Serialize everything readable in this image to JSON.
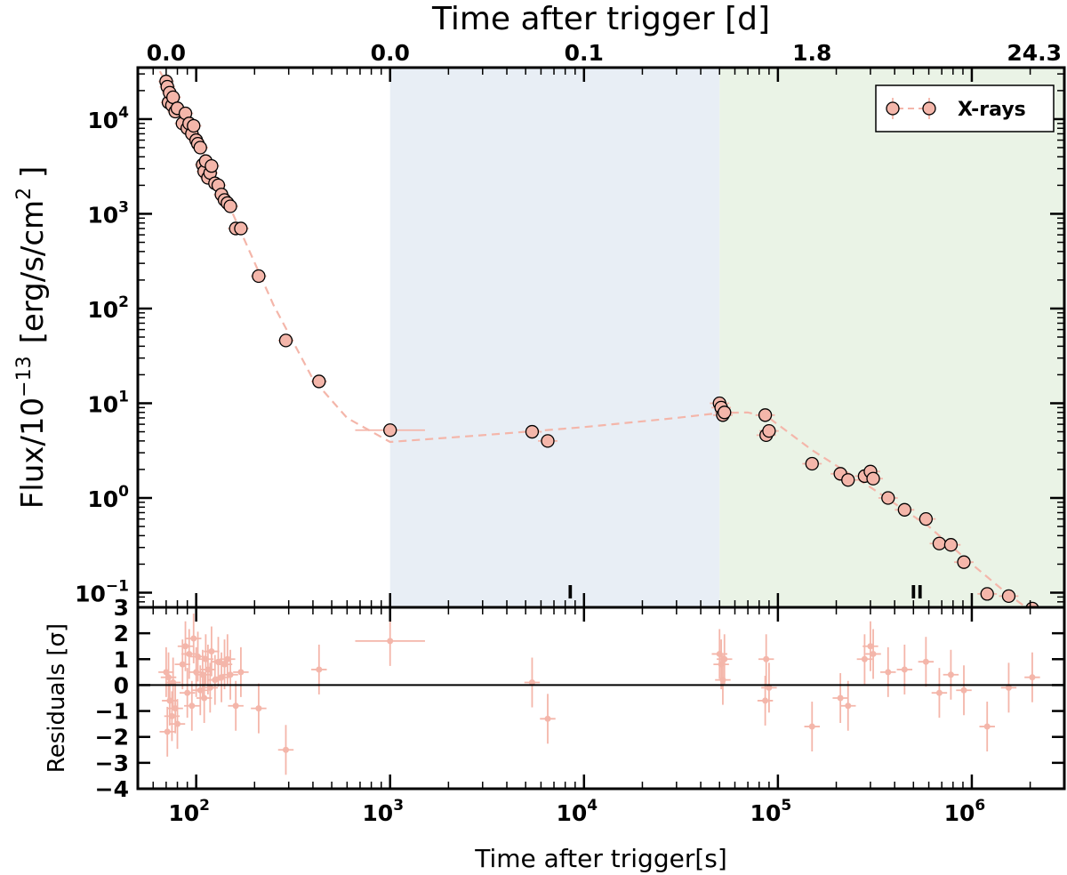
{
  "chart_data": [
    {
      "type": "scatter",
      "panel": "main",
      "top_title": "Time after trigger [d]",
      "top_ticks": [
        "0.0",
        "0.0",
        "0.1",
        "1.8",
        "24.3"
      ],
      "top_tick_positions_s": [
        70,
        1000,
        10000,
        150000,
        2100000
      ],
      "xscale": "log",
      "xlim": [
        50,
        3000000
      ],
      "ylabel": "Flux/10⁻¹³ [erg/s/cm²]",
      "ylabel_parts": {
        "text": "Flux/10",
        "exp": "−13",
        "unit_pre": "[erg/s/cm",
        "unit_exp": "2",
        "unit_post": " ]"
      },
      "yscale": "log",
      "ylim": [
        0.07,
        35000
      ],
      "yticks": [
        0.1,
        1,
        10,
        100,
        1000,
        10000
      ],
      "yticks_base": "10",
      "yticks_exp": [
        "−1",
        "0",
        "1",
        "2",
        "3",
        "4"
      ],
      "shaded_regions": [
        {
          "from": 1000,
          "to": 50000,
          "color": "#e8eef5"
        },
        {
          "from": 50000,
          "to": 3000000,
          "color": "#eaf3e6"
        }
      ],
      "phase_markers": [
        {
          "label": "I",
          "x": 8500
        },
        {
          "label": "II",
          "x": 520000
        }
      ],
      "legend": {
        "label": "X-rays",
        "position": "top-right"
      },
      "series": [
        {
          "name": "X-rays",
          "color": "#f4b6aa",
          "points": [
            [
              70,
              25000
            ],
            [
              71,
              22000
            ],
            [
              72,
              15000
            ],
            [
              73,
              19000
            ],
            [
              75,
              14000
            ],
            [
              76,
              17000
            ],
            [
              78,
              12000
            ],
            [
              80,
              13000
            ],
            [
              85,
              9000
            ],
            [
              88,
              11500
            ],
            [
              90,
              8000
            ],
            [
              92,
              9000
            ],
            [
              95,
              7000
            ],
            [
              97,
              8500
            ],
            [
              100,
              6000
            ],
            [
              102,
              5500
            ],
            [
              105,
              5000
            ],
            [
              108,
              3300
            ],
            [
              110,
              2800
            ],
            [
              112,
              3600
            ],
            [
              115,
              2400
            ],
            [
              118,
              2700
            ],
            [
              120,
              3200
            ],
            [
              125,
              2100
            ],
            [
              130,
              2000
            ],
            [
              135,
              1600
            ],
            [
              140,
              1400
            ],
            [
              145,
              1300
            ],
            [
              150,
              1200
            ],
            [
              160,
              700
            ],
            [
              170,
              700
            ],
            [
              210,
              220
            ],
            [
              290,
              46
            ],
            [
              430,
              17
            ],
            [
              1000,
              5.2
            ],
            [
              5400,
              5.0
            ],
            [
              6500,
              4.0
            ],
            [
              50000,
              10
            ],
            [
              51000,
              9
            ],
            [
              52000,
              7.5
            ],
            [
              53000,
              8
            ],
            [
              86000,
              7.5
            ],
            [
              87000,
              4.6
            ],
            [
              90000,
              5.1
            ],
            [
              150000,
              2.3
            ],
            [
              210000,
              1.8
            ],
            [
              230000,
              1.55
            ],
            [
              280000,
              1.7
            ],
            [
              300000,
              1.9
            ],
            [
              310000,
              1.6
            ],
            [
              370000,
              1.0
            ],
            [
              450000,
              0.75
            ],
            [
              580000,
              0.6
            ],
            [
              680000,
              0.33
            ],
            [
              780000,
              0.32
            ],
            [
              910000,
              0.21
            ],
            [
              1200000,
              0.097
            ],
            [
              1550000,
              0.092
            ],
            [
              2050000,
              0.068
            ]
          ],
          "model": [
            [
              65,
              32000
            ],
            [
              100,
              6200
            ],
            [
              150,
              1150
            ],
            [
              250,
              110
            ],
            [
              400,
              18
            ],
            [
              600,
              7
            ],
            [
              1000,
              3.9
            ],
            [
              3000,
              4.6
            ],
            [
              10000,
              5.6
            ],
            [
              30000,
              7
            ],
            [
              50000,
              7.9
            ],
            [
              70000,
              8
            ],
            [
              90000,
              7
            ],
            [
              150000,
              3.2
            ],
            [
              300000,
              1.3
            ],
            [
              600000,
              0.5
            ],
            [
              1000000,
              0.2
            ],
            [
              1500000,
              0.1
            ],
            [
              2000000,
              0.065
            ]
          ]
        }
      ]
    },
    {
      "type": "scatter",
      "panel": "residuals",
      "xlabel": "Time after trigger[s]",
      "xscale": "log",
      "xlim": [
        50,
        3000000
      ],
      "xticks": [
        100,
        1000,
        10000,
        100000,
        1000000
      ],
      "xticks_base": "10",
      "xticks_exp": [
        "2",
        "3",
        "4",
        "5",
        "6"
      ],
      "ylabel": "Residuals [σ]",
      "ylim": [
        -4,
        3
      ],
      "yticks": [
        -4,
        -3,
        -2,
        -1,
        0,
        1,
        2,
        3
      ],
      "ytick_labels": [
        "−4",
        "−3",
        "−2",
        "−1",
        "0",
        "1",
        "2",
        "3"
      ],
      "zero_line": 0,
      "series": [
        {
          "name": "X-rays residuals",
          "color": "#f4b6aa",
          "points": [
            [
              70,
              0.5
            ],
            [
              71,
              -1.8
            ],
            [
              72,
              0.3
            ],
            [
              73,
              -0.6
            ],
            [
              75,
              -1.2
            ],
            [
              76,
              0.1
            ],
            [
              78,
              -0.9
            ],
            [
              80,
              -1.5
            ],
            [
              85,
              0.8
            ],
            [
              88,
              1.5
            ],
            [
              90,
              -0.3
            ],
            [
              92,
              1.2
            ],
            [
              95,
              -0.8
            ],
            [
              97,
              1.8
            ],
            [
              100,
              0.5
            ],
            [
              102,
              1.1
            ],
            [
              105,
              -0.2
            ],
            [
              108,
              0.4
            ],
            [
              110,
              -0.5
            ],
            [
              112,
              1.0
            ],
            [
              115,
              0.6
            ],
            [
              118,
              -0.1
            ],
            [
              120,
              1.3
            ],
            [
              125,
              0.2
            ],
            [
              130,
              0.9
            ],
            [
              135,
              0.3
            ],
            [
              140,
              0.8
            ],
            [
              145,
              1.0
            ],
            [
              150,
              0.4
            ],
            [
              160,
              -0.8
            ],
            [
              170,
              0.5
            ],
            [
              210,
              -0.9
            ],
            [
              290,
              -2.5
            ],
            [
              430,
              0.6
            ],
            [
              1000,
              1.7
            ],
            [
              5400,
              0.1
            ],
            [
              6500,
              -1.3
            ],
            [
              50000,
              1.2
            ],
            [
              51000,
              0.8
            ],
            [
              52000,
              0.2
            ],
            [
              53000,
              1.0
            ],
            [
              86000,
              -0.6
            ],
            [
              87000,
              1.0
            ],
            [
              90000,
              -0.1
            ],
            [
              150000,
              -1.6
            ],
            [
              210000,
              -0.5
            ],
            [
              230000,
              -0.8
            ],
            [
              280000,
              1.0
            ],
            [
              300000,
              1.5
            ],
            [
              310000,
              1.2
            ],
            [
              370000,
              0.5
            ],
            [
              450000,
              0.6
            ],
            [
              580000,
              0.9
            ],
            [
              680000,
              -0.3
            ],
            [
              780000,
              0.4
            ],
            [
              910000,
              -0.2
            ],
            [
              1200000,
              -1.6
            ],
            [
              1550000,
              -0.1
            ],
            [
              2050000,
              0.3
            ]
          ]
        }
      ]
    }
  ]
}
